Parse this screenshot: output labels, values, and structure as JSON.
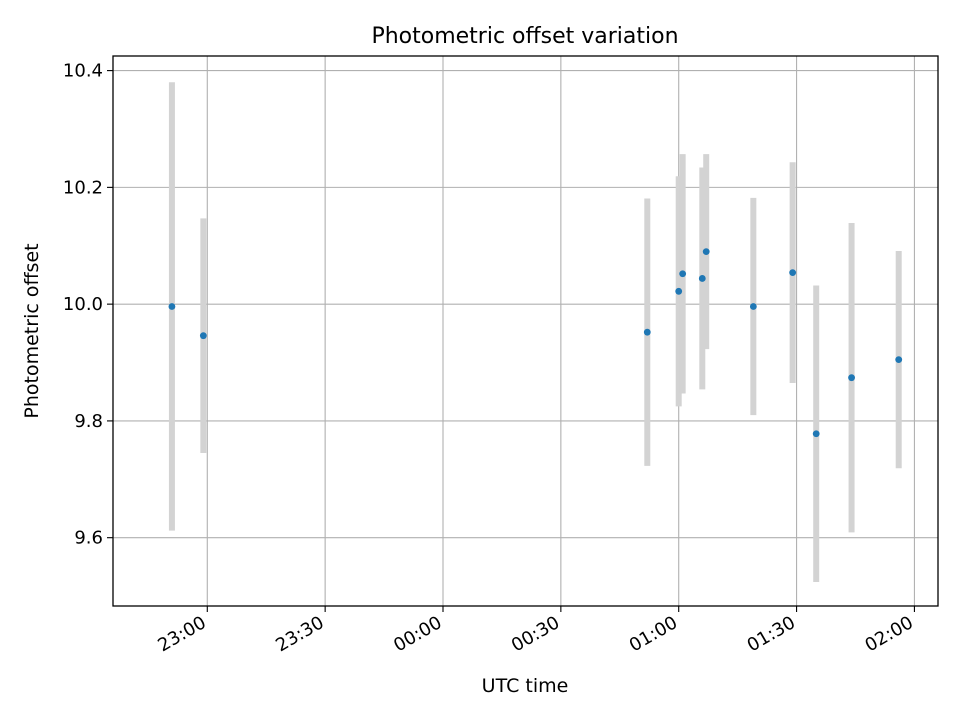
{
  "chart_data": {
    "type": "scatter",
    "title": "Photometric offset variation",
    "xlabel": "UTC time",
    "ylabel": "Photometric offset",
    "x_ticks": [
      "23:00",
      "23:30",
      "00:00",
      "00:30",
      "01:00",
      "01:30",
      "02:00"
    ],
    "y_ticks": [
      "9.6",
      "9.8",
      "10.0",
      "10.2",
      "10.4"
    ],
    "xlim": [
      "22:36",
      "02:06"
    ],
    "ylim": [
      9.483,
      10.425
    ],
    "grid": true,
    "marker_color": "#1f77b4",
    "errorbar_color": "#d3d3d3",
    "points": [
      {
        "time": "22:51",
        "y": 9.996,
        "err": 0.384
      },
      {
        "time": "22:59",
        "y": 9.946,
        "err": 0.201
      },
      {
        "time": "00:52",
        "y": 9.952,
        "err": 0.229
      },
      {
        "time": "01:00",
        "y": 10.022,
        "err": 0.197
      },
      {
        "time": "01:01",
        "y": 10.052,
        "err": 0.205
      },
      {
        "time": "01:06",
        "y": 10.044,
        "err": 0.19
      },
      {
        "time": "01:07",
        "y": 10.09,
        "err": 0.167
      },
      {
        "time": "01:19",
        "y": 9.996,
        "err": 0.186
      },
      {
        "time": "01:29",
        "y": 10.054,
        "err": 0.189
      },
      {
        "time": "01:35",
        "y": 9.778,
        "err": 0.254
      },
      {
        "time": "01:44",
        "y": 9.874,
        "err": 0.265
      },
      {
        "time": "01:56",
        "y": 9.905,
        "err": 0.186
      }
    ]
  }
}
